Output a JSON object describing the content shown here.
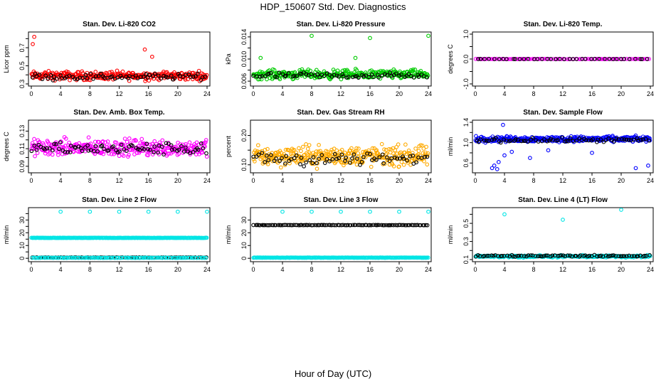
{
  "page": {
    "title": "HDP_150607  Std. Dev. Diagnostics",
    "xlabel": "Hour of Day (UTC)"
  },
  "chart_data": [
    {
      "type": "scatter",
      "title": "Stan. Dev. Li-820 CO2",
      "ylabel": "Licor ppm",
      "xlim": [
        0,
        24
      ],
      "ylim": [
        0.3,
        0.85
      ],
      "xticks": [
        0,
        4,
        8,
        12,
        16,
        20,
        24
      ],
      "yticks": [
        0.3,
        0.4,
        0.5,
        0.6,
        0.7,
        0.8
      ],
      "ytick_labels": [
        "0.3",
        "",
        "0.5",
        "",
        "0.7",
        ""
      ],
      "colors": [
        "#ff0000",
        "#000000"
      ],
      "grid": false,
      "legend": "none",
      "series": [
        {
          "kind": "band",
          "color": "#ff0000",
          "base": 0.39,
          "spread": 0.07,
          "count": 300,
          "outliers": [
            [
              0.4,
              0.82
            ],
            [
              0.2,
              0.74
            ],
            [
              15.5,
              0.68
            ],
            [
              16.5,
              0.6
            ]
          ]
        },
        {
          "kind": "band",
          "color": "#000000",
          "base": 0.38,
          "spread": 0.05,
          "count": 70,
          "outliers": []
        }
      ]
    },
    {
      "type": "scatter",
      "title": "Stan. Dev. Li-820 Pressure",
      "ylabel": "kPa",
      "xlim": [
        0,
        24
      ],
      "ylim": [
        0.0055,
        0.0145
      ],
      "xticks": [
        0,
        4,
        8,
        12,
        16,
        20,
        24
      ],
      "yticks": [
        0.006,
        0.008,
        0.01,
        0.012,
        0.014
      ],
      "ytick_labels": [
        "0.006",
        "",
        "0.010",
        "",
        "0.014"
      ],
      "colors": [
        "#00cc00",
        "#000000"
      ],
      "grid": false,
      "legend": "none",
      "series": [
        {
          "kind": "band",
          "color": "#00cc00",
          "base": 0.0072,
          "spread": 0.0012,
          "count": 300,
          "outliers": [
            [
              8,
              0.0142
            ],
            [
              16,
              0.0138
            ],
            [
              24,
              0.0142
            ],
            [
              1,
              0.0102
            ],
            [
              14,
              0.0102
            ]
          ]
        },
        {
          "kind": "band",
          "color": "#000000",
          "base": 0.007,
          "spread": 0.0008,
          "count": 70,
          "outliers": []
        }
      ]
    },
    {
      "type": "scatter",
      "title": "Stan. Dev. Li-820 Temp.",
      "ylabel": "degrees C",
      "xlim": [
        0,
        24
      ],
      "ylim": [
        -1,
        1
      ],
      "xticks": [
        0,
        4,
        8,
        12,
        16,
        20,
        24
      ],
      "yticks": [
        -1,
        -0.5,
        0,
        0.5,
        1
      ],
      "ytick_labels": [
        "-1.0",
        "",
        "0.0",
        "",
        "1.0"
      ],
      "colors": [
        "#ff00ff",
        "#000000"
      ],
      "grid": false,
      "legend": "none",
      "series": [
        {
          "kind": "line",
          "color": "#ff00ff",
          "value": 0,
          "count": 100
        },
        {
          "kind": "line",
          "color": "#000000",
          "value": 0,
          "count": 40
        }
      ]
    },
    {
      "type": "scatter",
      "title": "Stan. Dev. Amb. Box Temp.",
      "ylabel": "degrees C",
      "xlim": [
        0,
        24
      ],
      "ylim": [
        0.085,
        0.14
      ],
      "xticks": [
        0,
        4,
        8,
        12,
        16,
        20,
        24
      ],
      "yticks": [
        0.09,
        0.1,
        0.11,
        0.12,
        0.13
      ],
      "ytick_labels": [
        "0.09",
        "",
        "0.11",
        "",
        "0.13"
      ],
      "colors": [
        "#ff00ff",
        "#000000"
      ],
      "grid": false,
      "legend": "none",
      "series": [
        {
          "kind": "band",
          "color": "#ff00ff",
          "base": 0.111,
          "spread": 0.014,
          "count": 320,
          "outliers": []
        },
        {
          "kind": "band",
          "color": "#000000",
          "base": 0.11,
          "spread": 0.01,
          "count": 80,
          "outliers": []
        }
      ]
    },
    {
      "type": "scatter",
      "title": "Stan. Dev. Gas Stream RH",
      "ylabel": "percent",
      "xlim": [
        0,
        24
      ],
      "ylim": [
        0.08,
        0.245
      ],
      "xticks": [
        0,
        4,
        8,
        12,
        16,
        20,
        24
      ],
      "yticks": [
        0.1,
        0.15,
        0.2
      ],
      "ytick_labels": [
        "0.10",
        "",
        "0.20"
      ],
      "colors": [
        "#ffaa00",
        "#000000"
      ],
      "grid": false,
      "legend": "none",
      "series": [
        {
          "kind": "band",
          "color": "#ffaa00",
          "base": 0.13,
          "spread": 0.05,
          "count": 340,
          "outliers": []
        },
        {
          "kind": "band",
          "color": "#000000",
          "base": 0.12,
          "spread": 0.035,
          "count": 70,
          "outliers": []
        }
      ]
    },
    {
      "type": "scatter",
      "title": "Stan. Dev. Sample Flow",
      "ylabel": "ml/min",
      "xlim": [
        0,
        24
      ],
      "ylim": [
        0.45,
        1.4
      ],
      "xticks": [
        0,
        4,
        8,
        12,
        16,
        20,
        24
      ],
      "yticks": [
        0.6,
        0.8,
        1.0,
        1.2,
        1.4
      ],
      "ytick_labels": [
        "0.6",
        "",
        "1.0",
        "",
        "1.4"
      ],
      "colors": [
        "#0000ff",
        "#000000"
      ],
      "grid": false,
      "legend": "none",
      "series": [
        {
          "kind": "band",
          "color": "#0000ff",
          "base": 1.07,
          "spread": 0.08,
          "count": 320,
          "outliers": [
            [
              2.3,
              0.5
            ],
            [
              2.6,
              0.55
            ],
            [
              3,
              0.48
            ],
            [
              3.2,
              0.62
            ],
            [
              4,
              0.75
            ],
            [
              5,
              0.82
            ],
            [
              7.5,
              0.7
            ],
            [
              10,
              0.85
            ],
            [
              16,
              0.8
            ],
            [
              22,
              0.5
            ],
            [
              23.7,
              0.55
            ],
            [
              3.8,
              1.35
            ]
          ]
        },
        {
          "kind": "band",
          "color": "#000000",
          "base": 1.05,
          "spread": 0.06,
          "count": 70,
          "outliers": []
        }
      ]
    },
    {
      "type": "scatter",
      "title": "Stan. Dev. Line 2 Flow",
      "ylabel": "ml/min",
      "xlim": [
        0,
        24
      ],
      "ylim": [
        -1,
        38
      ],
      "xticks": [
        0,
        4,
        8,
        12,
        16,
        20,
        24
      ],
      "yticks": [
        0,
        5,
        10,
        15,
        20,
        25,
        30,
        35
      ],
      "ytick_labels": [
        "0",
        "",
        "10",
        "",
        "20",
        "",
        "30",
        ""
      ],
      "colors": [
        "#00e5e5",
        "#000000"
      ],
      "grid": false,
      "legend": "none",
      "series": [
        {
          "kind": "line",
          "color": "#00e5e5",
          "value": 16,
          "count": 260,
          "outliers": [
            [
              4,
              36.5
            ],
            [
              8,
              36.5
            ],
            [
              12,
              36.5
            ],
            [
              16,
              36.5
            ],
            [
              20,
              36.5
            ],
            [
              24,
              36.5
            ]
          ]
        },
        {
          "kind": "line",
          "color": "#000000",
          "value": 0.6,
          "count": 100
        },
        {
          "kind": "line",
          "color": "#00e5e5",
          "value": 0.4,
          "count": 120
        }
      ]
    },
    {
      "type": "scatter",
      "title": "Stan. Dev. Line 3 Flow",
      "ylabel": "ml/min",
      "xlim": [
        0,
        24
      ],
      "ylim": [
        -1,
        38
      ],
      "xticks": [
        0,
        4,
        8,
        12,
        16,
        20,
        24
      ],
      "yticks": [
        0,
        10,
        20,
        30
      ],
      "ytick_labels": [
        "0",
        "10",
        "20",
        "30"
      ],
      "colors": [
        "#000000",
        "#00e5e5"
      ],
      "grid": false,
      "legend": "none",
      "series": [
        {
          "kind": "line",
          "color": "#000000",
          "value": 26,
          "count": 110
        },
        {
          "kind": "line",
          "color": "#00e5e5",
          "value": 0.5,
          "count": 260,
          "outliers": [
            [
              4,
              36.5
            ],
            [
              8,
              36.5
            ],
            [
              12,
              36.5
            ],
            [
              16,
              36.5
            ],
            [
              20,
              36.5
            ],
            [
              24,
              36.5
            ]
          ]
        }
      ]
    },
    {
      "type": "scatter",
      "title": "Stan. Dev. Line 4 (LT) Flow",
      "ylabel": "ml/min",
      "xlim": [
        0,
        24
      ],
      "ylim": [
        0.1,
        0.65
      ],
      "xticks": [
        0,
        4,
        8,
        12,
        16,
        20,
        24
      ],
      "yticks": [
        0.1,
        0.2,
        0.3,
        0.4,
        0.5,
        0.6
      ],
      "ytick_labels": [
        "0.1",
        "",
        "0.3",
        "",
        "0.5",
        ""
      ],
      "colors": [
        "#00e5e5",
        "#000000"
      ],
      "grid": false,
      "legend": "none",
      "series": [
        {
          "kind": "band",
          "color": "#00e5e5",
          "base": 0.135,
          "spread": 0.018,
          "count": 260,
          "outliers": [
            [
              4,
              0.6
            ],
            [
              12,
              0.54
            ],
            [
              20,
              0.65
            ]
          ]
        },
        {
          "kind": "band",
          "color": "#000000",
          "base": 0.14,
          "spread": 0.015,
          "count": 80,
          "outliers": []
        }
      ]
    }
  ]
}
